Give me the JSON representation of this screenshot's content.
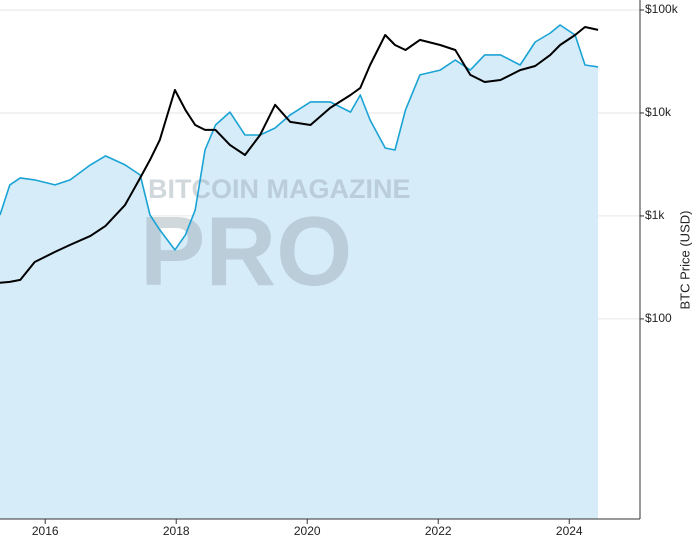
{
  "chart_data": {
    "type": "line",
    "y_label": "BTC Price (USD)",
    "watermark": [
      "BITCOIN MAGAZINE",
      "PRO"
    ],
    "log_scale": true,
    "grid": true,
    "xlim": [
      2015.31,
      2025.08
    ],
    "xticks": [
      2016,
      2018,
      2020,
      2022,
      2024
    ],
    "ylim": [
      1.14,
      125000
    ],
    "yticks": [
      {
        "value": 100000,
        "label": "$100k"
      },
      {
        "value": 10000,
        "label": "$10k"
      },
      {
        "value": 1000,
        "label": "$1k"
      },
      {
        "value": 100,
        "label": "$100"
      }
    ],
    "x": [
      2015.31,
      2015.46,
      2015.62,
      2015.84,
      2016.15,
      2016.38,
      2016.69,
      2016.92,
      2017.22,
      2017.45,
      2017.6,
      2017.75,
      2017.98,
      2018.14,
      2018.29,
      2018.44,
      2018.6,
      2018.82,
      2019.05,
      2019.28,
      2019.51,
      2019.74,
      2020.05,
      2020.35,
      2020.66,
      2020.81,
      2020.96,
      2021.19,
      2021.34,
      2021.5,
      2021.72,
      2022.03,
      2022.26,
      2022.49,
      2022.71,
      2022.95,
      2023.25,
      2023.48,
      2023.71,
      2023.86,
      2024.09,
      2024.24,
      2024.44
    ],
    "series": [
      {
        "color": "#1aa3d4",
        "area_color": "#d6ecf9",
        "values": [
          1020,
          2000,
          2340,
          2240,
          2000,
          2240,
          3130,
          3830,
          3130,
          2500,
          1020,
          731,
          468,
          654,
          1140,
          4370,
          7640,
          10200,
          6110,
          6110,
          7150,
          9570,
          12800,
          12800,
          10200,
          14950,
          8550,
          4570,
          4370,
          10700,
          23400,
          26100,
          32700,
          26100,
          36600,
          36600,
          29200,
          48900,
          59800,
          71500,
          57200,
          29200,
          28000
        ]
      },
      {
        "color": "#000000",
        "values": [
          224,
          229,
          239,
          357,
          447,
          523,
          640,
          800,
          1280,
          2340,
          3500,
          5470,
          16700,
          10700,
          7640,
          6840,
          6840,
          4890,
          3910,
          6110,
          12000,
          8180,
          7640,
          11200,
          14950,
          17500,
          29200,
          57200,
          45700,
          40900,
          51200,
          45700,
          40900,
          23400,
          20000,
          20900,
          26100,
          28600,
          36600,
          45700,
          57200,
          68400,
          64000
        ]
      }
    ]
  }
}
